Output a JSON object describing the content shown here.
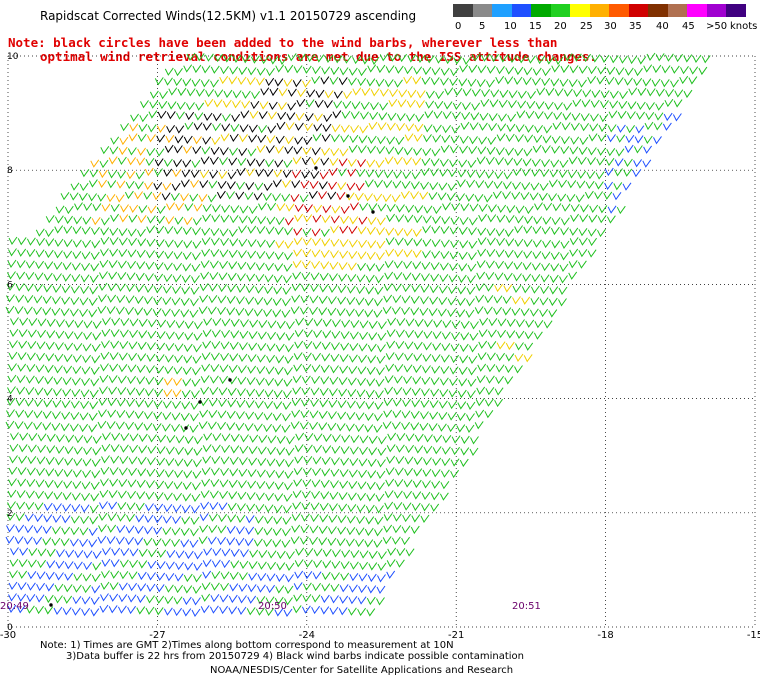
{
  "title": "Rapidscat Corrected Winds(12.5KM) v1.1 20150729 ascending",
  "note_line1": "Note: black circles have been added to the wind barbs, wherever less than",
  "note_line2": "optimal wind retrieval conditions are met due to the ISS attitude changes.",
  "colorbar": {
    "labels": [
      "0",
      "5",
      "10",
      "15",
      "20",
      "25",
      "30",
      "35",
      "40",
      "45",
      ">50"
    ],
    "unit": "knots",
    "colors": [
      "#404040",
      "#8a8a8a",
      "#1fa0ff",
      "#1f50ff",
      "#00aa00",
      "#20d020",
      "#ffff00",
      "#ffb000",
      "#ff5a00",
      "#d00000",
      "#803000",
      "#b07050",
      "#ff00ff",
      "#a000d0",
      "#400080"
    ]
  },
  "axes": {
    "x_ticks": [
      "-30",
      "-27",
      "-24",
      "-21",
      "-18",
      "-15"
    ],
    "y_ticks": [
      "0",
      "2",
      "4",
      "6",
      "8",
      "10"
    ]
  },
  "times": [
    "20:49",
    "20:50",
    "20:51"
  ],
  "footnote_line1": "Note: 1) Times are GMT 2)Times along bottom correspond to measurement at 10N",
  "footnote_line2": "3)Data buffer is 22 hrs from 20150729 4) Black wind barbs indicate possible contamination",
  "credit": "NOAA/NESDIS/Center for Satellite Applications and Research"
}
